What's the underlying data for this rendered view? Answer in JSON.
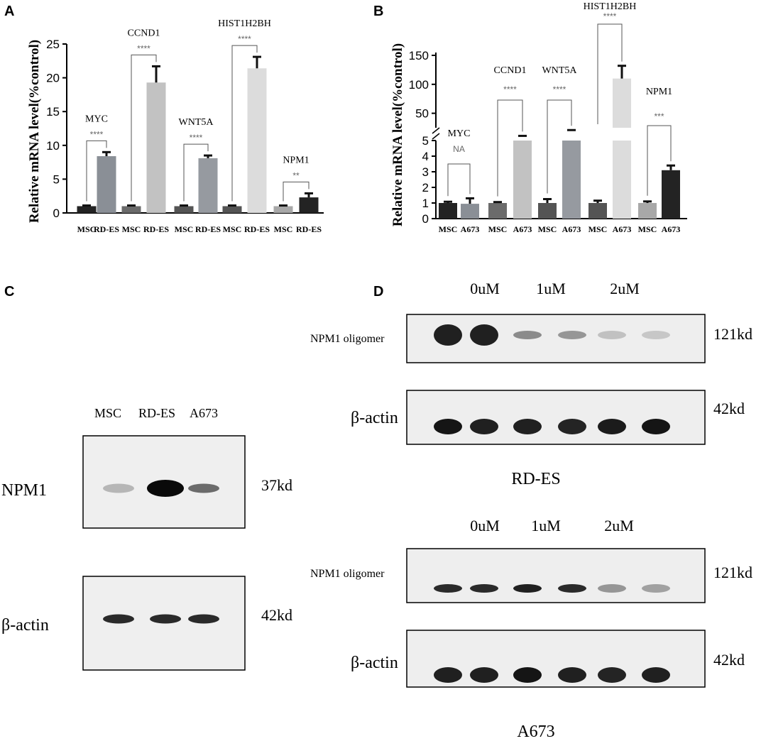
{
  "panels": {
    "a": "A",
    "b": "B",
    "c": "C",
    "d": "D"
  },
  "chart_data": [
    {
      "panel": "A",
      "type": "bar",
      "ylabel": "Relative mRNA level(%control)",
      "ylim": [
        0,
        25
      ],
      "yticks": [
        0,
        5,
        10,
        15,
        20,
        25
      ],
      "categories": [
        "MSC",
        "RD-ES",
        "MSC",
        "RD-ES",
        "MSC",
        "RD-ES",
        "MSC",
        "RD-ES",
        "MSC",
        "RD-ES"
      ],
      "values": [
        1.0,
        8.4,
        1.0,
        19.3,
        1.0,
        8.1,
        1.0,
        21.4,
        1.0,
        2.3
      ],
      "errors": [
        0.1,
        0.6,
        0.1,
        2.4,
        0.1,
        0.4,
        0.1,
        1.7,
        0.1,
        0.6
      ],
      "colors": [
        "#232323",
        "#8a8f96",
        "#6b6b6b",
        "#c2c2c2",
        "#545454",
        "#969aa0",
        "#545454",
        "#dcdcdc",
        "#a8a8a8",
        "#232323"
      ],
      "comparisons": [
        {
          "gene": "MYC",
          "sig": "****",
          "pair": [
            0,
            1
          ]
        },
        {
          "gene": "CCND1",
          "sig": "****",
          "pair": [
            2,
            3
          ]
        },
        {
          "gene": "WNT5A",
          "sig": "****",
          "pair": [
            4,
            5
          ]
        },
        {
          "gene": "HIST1H2BH",
          "sig": "****",
          "pair": [
            6,
            7
          ]
        },
        {
          "gene": "NPM1",
          "sig": "**",
          "pair": [
            8,
            9
          ]
        }
      ]
    },
    {
      "panel": "B",
      "type": "bar",
      "ylabel": "Relative mRNA level(%control)",
      "ylim": [
        0,
        150
      ],
      "axis_break": [
        5,
        25
      ],
      "yticks_lower": [
        0,
        1,
        2,
        3,
        4,
        5
      ],
      "yticks_upper": [
        50,
        100,
        150
      ],
      "categories": [
        "MSC",
        "A673",
        "MSC",
        "A673",
        "MSC",
        "A673",
        "MSC",
        "A673",
        "MSC",
        "A673"
      ],
      "values": [
        1.0,
        0.95,
        1.0,
        10,
        1.0,
        20,
        1.0,
        110,
        1.0,
        3.1
      ],
      "errors": [
        0.08,
        0.35,
        0.06,
        1.0,
        0.25,
        1.0,
        0.15,
        22,
        0.1,
        0.3
      ],
      "colors": [
        "#232323",
        "#8a8f96",
        "#6b6b6b",
        "#c2c2c2",
        "#545454",
        "#969aa0",
        "#545454",
        "#dcdcdc",
        "#a8a8a8",
        "#232323"
      ],
      "comparisons": [
        {
          "gene": "MYC",
          "sig": "NA",
          "pair": [
            0,
            1
          ]
        },
        {
          "gene": "CCND1",
          "sig": "****",
          "pair": [
            2,
            3
          ]
        },
        {
          "gene": "WNT5A",
          "sig": "****",
          "pair": [
            4,
            5
          ]
        },
        {
          "gene": "HIST1H2BH",
          "sig": "****",
          "pair": [
            6,
            7
          ]
        },
        {
          "gene": "NPM1",
          "sig": "***",
          "pair": [
            8,
            9
          ]
        }
      ]
    }
  ],
  "blot_c": {
    "lanes": [
      "MSC",
      "RD-ES",
      "A673"
    ],
    "rows": [
      {
        "label": "NPM1",
        "size": "37kd",
        "intensity": [
          0.2,
          1.0,
          0.55
        ]
      },
      {
        "label": "β-actin",
        "size": "42kd",
        "intensity": [
          0.85,
          0.85,
          0.85
        ]
      }
    ]
  },
  "blot_d": [
    {
      "cell_line": "RD-ES",
      "doses": [
        "0uM",
        "1uM",
        "2uM"
      ],
      "rows": [
        {
          "label": "NPM1 oligomer",
          "size": "121kd",
          "intensity": [
            0.9,
            0.9,
            0.4,
            0.35,
            0.15,
            0.12
          ]
        },
        {
          "label": "β-actin",
          "size": "42kd",
          "intensity": [
            0.95,
            0.9,
            0.9,
            0.88,
            0.92,
            0.95
          ]
        }
      ]
    },
    {
      "cell_line": "A673",
      "doses": [
        "0uM",
        "1uM",
        "2uM"
      ],
      "rows": [
        {
          "label": "NPM1 oligomer",
          "size": "121kd",
          "intensity": [
            0.85,
            0.85,
            0.9,
            0.85,
            0.35,
            0.3
          ]
        },
        {
          "label": "β-actin",
          "size": "42kd",
          "intensity": [
            0.9,
            0.9,
            0.95,
            0.9,
            0.88,
            0.9
          ]
        }
      ]
    }
  ]
}
